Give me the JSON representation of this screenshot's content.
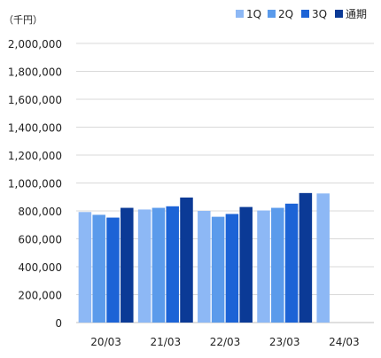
{
  "chart_data": {
    "type": "bar",
    "unit_label": "（千円）",
    "categories": [
      "20/03",
      "21/03",
      "22/03",
      "23/03",
      "24/03"
    ],
    "series": [
      {
        "name": "1Q",
        "color": "#8DB8F5",
        "values": [
          792000,
          810000,
          800000,
          803000,
          925000
        ]
      },
      {
        "name": "2Q",
        "color": "#5B9BEB",
        "values": [
          772000,
          822000,
          758000,
          822000,
          null
        ]
      },
      {
        "name": "3Q",
        "color": "#1C63D6",
        "values": [
          752000,
          833000,
          778000,
          852000,
          null
        ]
      },
      {
        "name": "通期",
        "color": "#0B3A96",
        "values": [
          822000,
          896000,
          828000,
          928000,
          null
        ]
      }
    ],
    "ylim": [
      0,
      2000000
    ],
    "yticks": [
      "0",
      "200,000",
      "400,000",
      "600,000",
      "800,000",
      "1,000,000",
      "1,200,000",
      "1,400,000",
      "1,600,000",
      "1,800,000",
      "2,000,000"
    ],
    "grid": true,
    "legend_position": "top-right"
  }
}
